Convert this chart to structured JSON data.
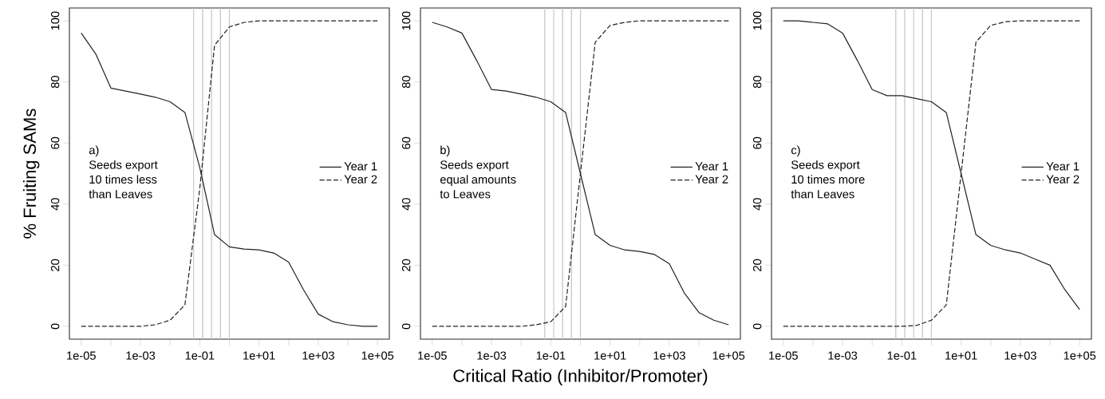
{
  "chart_data": [
    {
      "type": "line",
      "ylabel": "% Fruiting SAMs",
      "log": "x",
      "legend": "right",
      "annotations": [
        "a)",
        "Seeds export 10 times less than Leaves"
      ],
      "x": [
        1e-05,
        3.162e-05,
        0.0001,
        0.0003162,
        0.001,
        0.003162,
        0.01,
        0.03162,
        0.1,
        0.3162,
        1,
        3.162,
        10,
        31.62,
        100,
        316.2,
        1000,
        3162,
        10000,
        31620,
        100000
      ],
      "xlim": [
        4e-06,
        250000
      ],
      "ylim": [
        -4.2,
        104.2
      ],
      "xticks": [
        {
          "value": 1e-05,
          "label": "1e-05"
        },
        {
          "value": 0.0001,
          "label": null
        },
        {
          "value": 0.001,
          "label": "1e-03"
        },
        {
          "value": 0.01,
          "label": null
        },
        {
          "value": 0.1,
          "label": "1e-01"
        },
        {
          "value": 1,
          "label": null
        },
        {
          "value": 10,
          "label": "1e+01"
        },
        {
          "value": 100,
          "label": null
        },
        {
          "value": 1000,
          "label": "1e+03"
        },
        {
          "value": 10000,
          "label": null
        },
        {
          "value": 100000,
          "label": "1e+05"
        }
      ],
      "yticks": [
        0,
        20,
        40,
        60,
        80,
        100
      ],
      "ref_lines": [
        {
          "axis": "x",
          "value": 0.0625,
          "color": "#c8c8c8"
        },
        {
          "axis": "x",
          "value": 0.125,
          "color": "#c8c8c8"
        },
        {
          "axis": "x",
          "value": 0.25,
          "color": "#c8c8c8"
        },
        {
          "axis": "x",
          "value": 0.5,
          "color": "#c8c8c8"
        },
        {
          "axis": "x",
          "value": 1,
          "color": "#c8c8c8"
        }
      ],
      "series": [
        {
          "name": "Year 1",
          "color": "#222222",
          "line_style": "solid",
          "values": [
            96,
            89,
            78,
            77,
            76,
            75,
            73.5,
            70,
            52,
            30,
            26,
            25.3,
            25,
            24,
            21,
            12,
            4,
            1.5,
            0.5,
            0,
            0
          ]
        },
        {
          "name": "Year 2",
          "color": "#222222",
          "line_style": "dashed",
          "values": [
            0,
            0,
            0,
            0,
            0,
            0.5,
            2,
            7,
            45,
            92,
            98,
            99.5,
            100,
            100,
            100,
            100,
            100,
            100,
            100,
            100,
            100
          ]
        }
      ]
    },
    {
      "type": "line",
      "xlabel": "Critical Ratio (Inhibitor/Promoter)",
      "log": "x",
      "legend": "right",
      "annotations": [
        "b)",
        "Seeds export equal amounts to Leaves"
      ],
      "x": [
        1e-05,
        3.162e-05,
        0.0001,
        0.0003162,
        0.001,
        0.003162,
        0.01,
        0.03162,
        0.1,
        0.3162,
        1,
        3.162,
        10,
        31.62,
        100,
        316.2,
        1000,
        3162,
        10000,
        31620,
        100000
      ],
      "xlim": [
        4e-06,
        250000
      ],
      "ylim": [
        -4.2,
        104.2
      ],
      "xticks": [
        {
          "value": 1e-05,
          "label": "1e-05"
        },
        {
          "value": 0.0001,
          "label": null
        },
        {
          "value": 0.001,
          "label": "1e-03"
        },
        {
          "value": 0.01,
          "label": null
        },
        {
          "value": 0.1,
          "label": "1e-01"
        },
        {
          "value": 1,
          "label": null
        },
        {
          "value": 10,
          "label": "1e+01"
        },
        {
          "value": 100,
          "label": null
        },
        {
          "value": 1000,
          "label": "1e+03"
        },
        {
          "value": 10000,
          "label": null
        },
        {
          "value": 100000,
          "label": "1e+05"
        }
      ],
      "yticks": [
        0,
        20,
        40,
        60,
        80,
        100
      ],
      "ref_lines": [
        {
          "axis": "x",
          "value": 0.0625,
          "color": "#c8c8c8"
        },
        {
          "axis": "x",
          "value": 0.125,
          "color": "#c8c8c8"
        },
        {
          "axis": "x",
          "value": 0.25,
          "color": "#c8c8c8"
        },
        {
          "axis": "x",
          "value": 0.5,
          "color": "#c8c8c8"
        },
        {
          "axis": "x",
          "value": 1,
          "color": "#c8c8c8"
        }
      ],
      "series": [
        {
          "name": "Year 1",
          "color": "#222222",
          "line_style": "solid",
          "values": [
            99.5,
            98,
            96,
            87,
            77.5,
            77,
            76,
            75,
            73.5,
            70,
            50,
            30,
            26.5,
            25,
            24.5,
            23.5,
            20.5,
            11,
            4.5,
            2,
            0.5
          ]
        },
        {
          "name": "Year 2",
          "color": "#222222",
          "line_style": "dashed",
          "values": [
            0,
            0,
            0,
            0,
            0,
            0,
            0,
            0.5,
            1.5,
            6.5,
            50,
            93,
            98.5,
            99.5,
            100,
            100,
            100,
            100,
            100,
            100,
            100
          ]
        }
      ]
    },
    {
      "type": "line",
      "log": "x",
      "legend": "right",
      "annotations": [
        "c)",
        "Seeds export 10 times more than Leaves"
      ],
      "x": [
        1e-05,
        3.162e-05,
        0.0001,
        0.0003162,
        0.001,
        0.003162,
        0.01,
        0.03162,
        0.1,
        0.3162,
        1,
        3.162,
        10,
        31.62,
        100,
        316.2,
        1000,
        3162,
        10000,
        31620,
        100000
      ],
      "xlim": [
        4e-06,
        250000
      ],
      "ylim": [
        -4.2,
        104.2
      ],
      "xticks": [
        {
          "value": 1e-05,
          "label": "1e-05"
        },
        {
          "value": 0.0001,
          "label": null
        },
        {
          "value": 0.001,
          "label": "1e-03"
        },
        {
          "value": 0.01,
          "label": null
        },
        {
          "value": 0.1,
          "label": "1e-01"
        },
        {
          "value": 1,
          "label": null
        },
        {
          "value": 10,
          "label": "1e+01"
        },
        {
          "value": 100,
          "label": null
        },
        {
          "value": 1000,
          "label": "1e+03"
        },
        {
          "value": 10000,
          "label": null
        },
        {
          "value": 100000,
          "label": "1e+05"
        }
      ],
      "yticks": [
        0,
        20,
        40,
        60,
        80,
        100
      ],
      "ref_lines": [
        {
          "axis": "x",
          "value": 0.0625,
          "color": "#c8c8c8"
        },
        {
          "axis": "x",
          "value": 0.125,
          "color": "#c8c8c8"
        },
        {
          "axis": "x",
          "value": 0.25,
          "color": "#c8c8c8"
        },
        {
          "axis": "x",
          "value": 0.5,
          "color": "#c8c8c8"
        },
        {
          "axis": "x",
          "value": 1,
          "color": "#c8c8c8"
        }
      ],
      "series": [
        {
          "name": "Year 1",
          "color": "#222222",
          "line_style": "solid",
          "values": [
            100,
            100,
            99.5,
            99,
            96,
            87,
            77.5,
            75.5,
            75.5,
            74.5,
            73.5,
            70,
            50,
            30,
            26.5,
            25,
            24,
            22,
            20,
            12,
            5.5
          ]
        },
        {
          "name": "Year 2",
          "color": "#222222",
          "line_style": "dashed",
          "values": [
            0,
            0,
            0,
            0,
            0,
            0,
            0,
            0,
            0,
            0.3,
            2,
            7,
            50,
            93,
            98.5,
            99.7,
            100,
            100,
            100,
            100,
            100
          ]
        }
      ]
    }
  ]
}
